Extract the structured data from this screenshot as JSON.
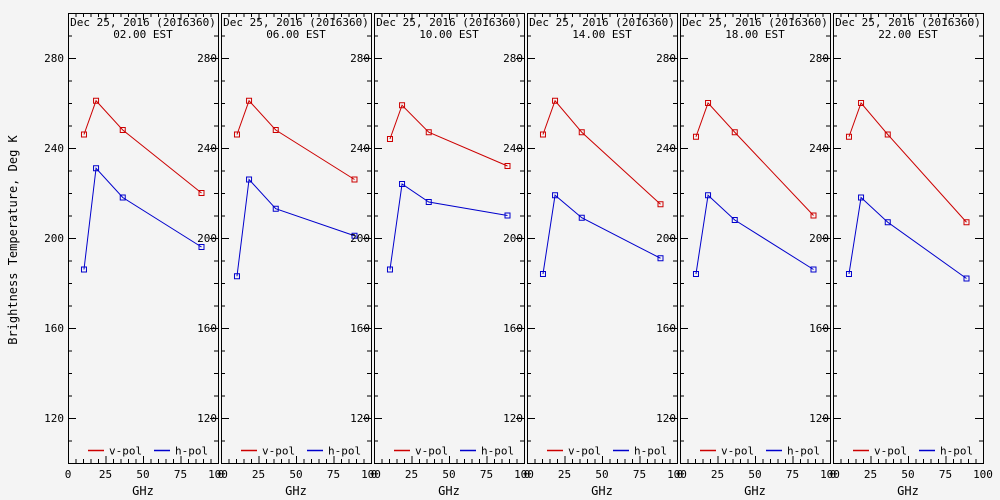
{
  "figure_bg": "#f4f4f4",
  "chart_data": {
    "type": "line",
    "title": "Dec 25, 2016 (2016360)",
    "xlabel": "GHz",
    "ylabel": "Brightness Temperature, Deg K",
    "xlim": [
      0,
      100
    ],
    "ylim": [
      100,
      300
    ],
    "xticks": [
      0,
      25,
      50,
      75,
      100
    ],
    "yticks": [
      120,
      160,
      200,
      240,
      280
    ],
    "x_minor_step": 5,
    "y_minor_step": 10,
    "grid": false,
    "legend_position": "bottom-inside-each-panel",
    "x_frequencies_ghz": [
      10.65,
      18.7,
      36.5,
      89.0
    ],
    "legend": [
      {
        "label": "v-pol",
        "color": "#cc0000"
      },
      {
        "label": "h-pol",
        "color": "#0000cc"
      }
    ],
    "panels": [
      {
        "title_line1": "Dec 25, 2016 (2016360)",
        "title_line2": "02.00 EST",
        "series": [
          {
            "name": "v-pol",
            "color": "#cc0000",
            "values": [
              246,
              261,
              248,
              220
            ]
          },
          {
            "name": "h-pol",
            "color": "#0000cc",
            "values": [
              186,
              231,
              218,
              196
            ]
          }
        ]
      },
      {
        "title_line1": "Dec 25, 2016 (2016360)",
        "title_line2": "06.00 EST",
        "series": [
          {
            "name": "v-pol",
            "color": "#cc0000",
            "values": [
              246,
              261,
              248,
              226
            ]
          },
          {
            "name": "h-pol",
            "color": "#0000cc",
            "values": [
              183,
              226,
              213,
              201
            ]
          }
        ]
      },
      {
        "title_line1": "Dec 25, 2016 (2016360)",
        "title_line2": "10.00 EST",
        "series": [
          {
            "name": "v-pol",
            "color": "#cc0000",
            "values": [
              244,
              259,
              247,
              232
            ]
          },
          {
            "name": "h-pol",
            "color": "#0000cc",
            "values": [
              186,
              224,
              216,
              210
            ]
          }
        ]
      },
      {
        "title_line1": "Dec 25, 2016 (2016360)",
        "title_line2": "14.00 EST",
        "series": [
          {
            "name": "v-pol",
            "color": "#cc0000",
            "values": [
              246,
              261,
              247,
              215
            ]
          },
          {
            "name": "h-pol",
            "color": "#0000cc",
            "values": [
              184,
              219,
              209,
              191
            ]
          }
        ]
      },
      {
        "title_line1": "Dec 25, 2016 (2016360)",
        "title_line2": "18.00 EST",
        "series": [
          {
            "name": "v-pol",
            "color": "#cc0000",
            "values": [
              245,
              260,
              247,
              210
            ]
          },
          {
            "name": "h-pol",
            "color": "#0000cc",
            "values": [
              184,
              219,
              208,
              186
            ]
          }
        ]
      },
      {
        "title_line1": "Dec 25, 2016 (2016360)",
        "title_line2": "22.00 EST",
        "series": [
          {
            "name": "v-pol",
            "color": "#cc0000",
            "values": [
              245,
              260,
              246,
              207
            ]
          },
          {
            "name": "h-pol",
            "color": "#0000cc",
            "values": [
              184,
              218,
              207,
              182
            ]
          }
        ]
      }
    ]
  }
}
